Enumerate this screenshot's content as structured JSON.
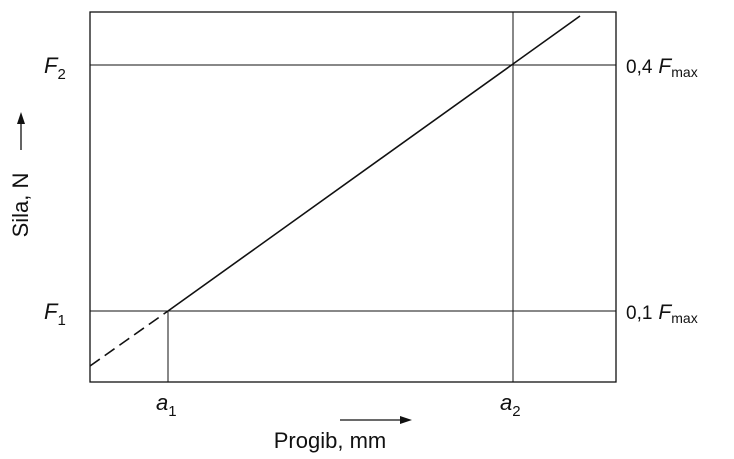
{
  "diagram": {
    "y_axis_label": "Sila, N",
    "x_axis_label": "Progib, mm",
    "left_labels": {
      "upper": {
        "main": "F",
        "sub": "2"
      },
      "lower": {
        "main": "F",
        "sub": "1"
      }
    },
    "right_labels": {
      "upper": {
        "value": "0,4",
        "main": "F",
        "sub": "max"
      },
      "lower": {
        "value": "0,1",
        "main": "F",
        "sub": "max"
      }
    },
    "bottom_labels": {
      "left": {
        "main": "a",
        "sub": "1"
      },
      "right": {
        "main": "a",
        "sub": "2"
      }
    },
    "line_style": {
      "solid_segment": "solid",
      "extrapolated_segment": "dashed"
    },
    "colors": {
      "ink": "#111111",
      "background": "#ffffff"
    }
  }
}
